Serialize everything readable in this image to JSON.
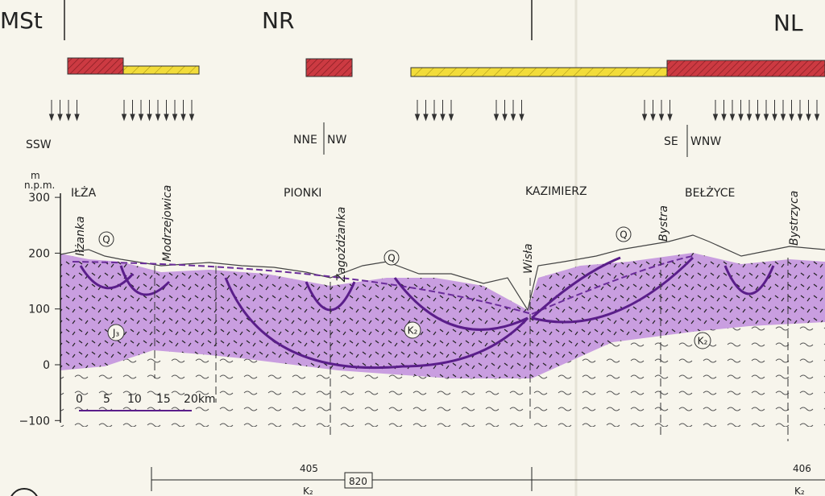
{
  "header": {
    "regions": [
      "MSt",
      "NR",
      "NL"
    ]
  },
  "directions": [
    "SSW",
    "NNE",
    "NW",
    "SE",
    "WNW"
  ],
  "axis": {
    "unit_top": "m",
    "unit": "n.p.m.",
    "ticks": [
      300,
      200,
      100,
      0,
      {
        "value": -100,
        "label": "−100"
      }
    ]
  },
  "places": [
    "IŁŻA",
    "PIONKI",
    "KAZIMIERZ",
    "BEŁŻYCE"
  ],
  "rivers": [
    "Iłżanka",
    "Modrzejowica",
    "Zagożdżanka",
    "Wisła",
    "Bystra",
    "Bystrzyca"
  ],
  "units": [
    "Q",
    "Q",
    "Q",
    "J₃",
    "K₂",
    "K₂"
  ],
  "scale": [
    "0",
    "5",
    "10",
    "15",
    "20km"
  ],
  "footer": {
    "left": "405",
    "center": "820",
    "right": "406",
    "unit_left": "K₂",
    "unit_right": "K₂"
  }
}
